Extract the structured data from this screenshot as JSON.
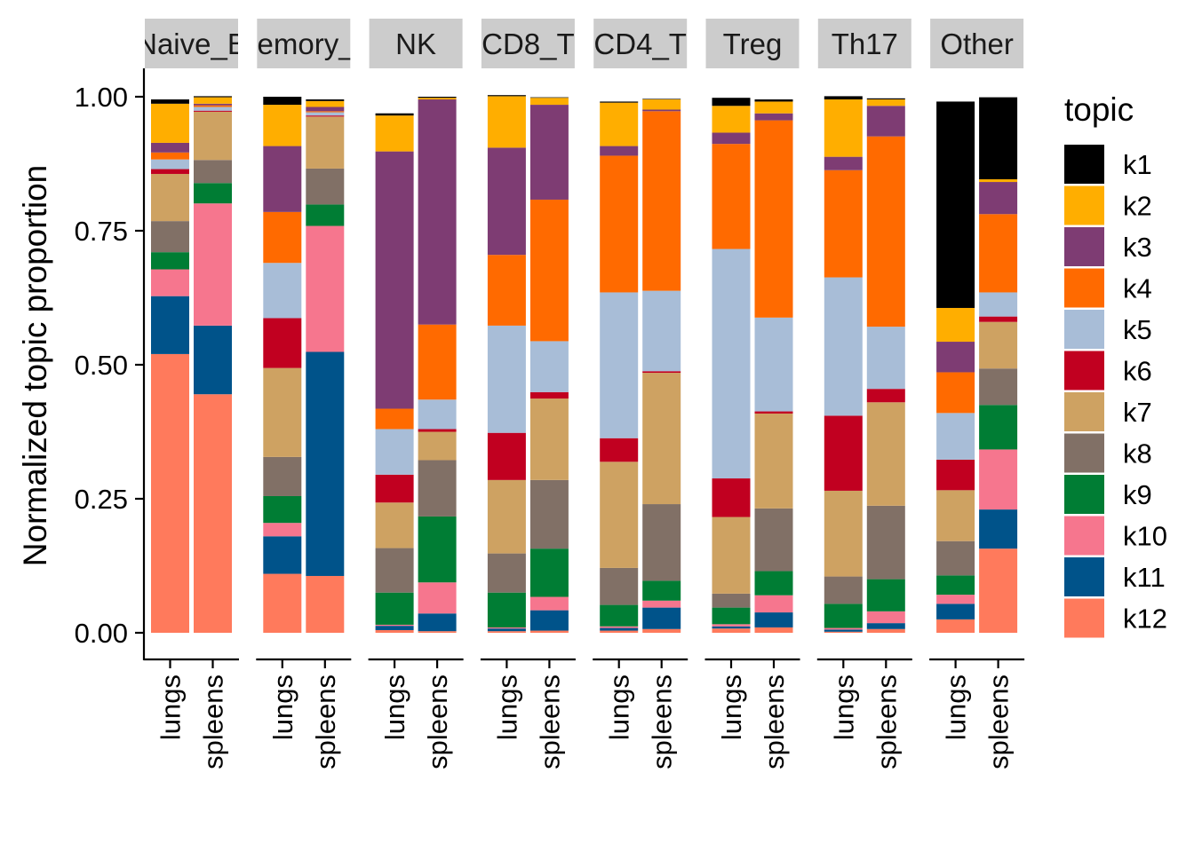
{
  "chart_data": {
    "type": "bar",
    "stacked": true,
    "ylabel": "Normalized topic proportion",
    "ylim": [
      0,
      1
    ],
    "y_ticks": [
      "0.00",
      "0.25",
      "0.50",
      "0.75",
      "1.00"
    ],
    "facets": [
      "Naive_B",
      "Memory_B",
      "NK",
      "CD8_T",
      "CD4_T",
      "Treg",
      "Th17",
      "Other"
    ],
    "categories": [
      "lungs",
      "spleens"
    ],
    "legend": {
      "title": "topic",
      "position": "right",
      "entries": [
        "k1",
        "k2",
        "k3",
        "k4",
        "k5",
        "k6",
        "k7",
        "k8",
        "k9",
        "k10",
        "k11",
        "k12"
      ]
    },
    "colors": {
      "k1": "#000000",
      "k2": "#FFAE00",
      "k3": "#7E3C73",
      "k4": "#FF6A00",
      "k5": "#A8BDD7",
      "k6": "#C10020",
      "k7": "#CEA262",
      "k8": "#817066",
      "k9": "#007D34",
      "k10": "#F6768E",
      "k11": "#00538A",
      "k12": "#FF7A5C"
    },
    "stack_order_bottom_to_top": [
      "k12",
      "k11",
      "k10",
      "k9",
      "k8",
      "k7",
      "k6",
      "k5",
      "k4",
      "k3",
      "k2",
      "k1"
    ],
    "series": [
      {
        "name": "k1",
        "values": [
          [
            0.008,
            0.002
          ],
          [
            0.015,
            0.003
          ],
          [
            0.004,
            0.002
          ],
          [
            0.002,
            0.001
          ],
          [
            0.002,
            0.001
          ],
          [
            0.015,
            0.004
          ],
          [
            0.006,
            0.002
          ],
          [
            0.385,
            0.153
          ]
        ]
      },
      {
        "name": "k2",
        "values": [
          [
            0.073,
            0.012
          ],
          [
            0.077,
            0.011
          ],
          [
            0.067,
            0.003
          ],
          [
            0.096,
            0.013
          ],
          [
            0.081,
            0.019
          ],
          [
            0.05,
            0.022
          ],
          [
            0.107,
            0.012
          ],
          [
            0.063,
            0.005
          ]
        ]
      },
      {
        "name": "k3",
        "values": [
          [
            0.018,
            0.003
          ],
          [
            0.123,
            0.008
          ],
          [
            0.48,
            0.42
          ],
          [
            0.2,
            0.177
          ],
          [
            0.018,
            0.003
          ],
          [
            0.021,
            0.013
          ],
          [
            0.025,
            0.057
          ],
          [
            0.057,
            0.06
          ]
        ]
      },
      {
        "name": "k4",
        "values": [
          [
            0.013,
            0.003
          ],
          [
            0.095,
            0.002
          ],
          [
            0.038,
            0.14
          ],
          [
            0.132,
            0.264
          ],
          [
            0.255,
            0.335
          ],
          [
            0.196,
            0.368
          ],
          [
            0.2,
            0.355
          ],
          [
            0.076,
            0.146
          ]
        ]
      },
      {
        "name": "k5",
        "values": [
          [
            0.018,
            0.007
          ],
          [
            0.103,
            0.006
          ],
          [
            0.085,
            0.055
          ],
          [
            0.2,
            0.095
          ],
          [
            0.272,
            0.15
          ],
          [
            0.428,
            0.175
          ],
          [
            0.258,
            0.116
          ],
          [
            0.087,
            0.045
          ]
        ]
      },
      {
        "name": "k6",
        "values": [
          [
            0.009,
            0.002
          ],
          [
            0.093,
            0.002
          ],
          [
            0.052,
            0.005
          ],
          [
            0.088,
            0.012
          ],
          [
            0.044,
            0.003
          ],
          [
            0.072,
            0.004
          ],
          [
            0.14,
            0.025
          ],
          [
            0.057,
            0.01
          ]
        ]
      },
      {
        "name": "k7",
        "values": [
          [
            0.088,
            0.09
          ],
          [
            0.166,
            0.097
          ],
          [
            0.085,
            0.053
          ],
          [
            0.137,
            0.152
          ],
          [
            0.198,
            0.245
          ],
          [
            0.143,
            0.177
          ],
          [
            0.16,
            0.193
          ],
          [
            0.095,
            0.087
          ]
        ]
      },
      {
        "name": "k8",
        "values": [
          [
            0.058,
            0.043
          ],
          [
            0.073,
            0.067
          ],
          [
            0.083,
            0.105
          ],
          [
            0.073,
            0.128
          ],
          [
            0.069,
            0.143
          ],
          [
            0.026,
            0.117
          ],
          [
            0.051,
            0.137
          ],
          [
            0.064,
            0.068
          ]
        ]
      },
      {
        "name": "k9",
        "values": [
          [
            0.032,
            0.038
          ],
          [
            0.05,
            0.04
          ],
          [
            0.06,
            0.123
          ],
          [
            0.065,
            0.09
          ],
          [
            0.04,
            0.037
          ],
          [
            0.031,
            0.045
          ],
          [
            0.045,
            0.06
          ],
          [
            0.036,
            0.083
          ]
        ]
      },
      {
        "name": "k10",
        "values": [
          [
            0.05,
            0.228
          ],
          [
            0.025,
            0.235
          ],
          [
            0.002,
            0.058
          ],
          [
            0.002,
            0.025
          ],
          [
            0.003,
            0.013
          ],
          [
            0.004,
            0.032
          ],
          [
            0.003,
            0.022
          ],
          [
            0.017,
            0.112
          ]
        ]
      },
      {
        "name": "k11",
        "values": [
          [
            0.108,
            0.128
          ],
          [
            0.07,
            0.418
          ],
          [
            0.008,
            0.033
          ],
          [
            0.005,
            0.038
          ],
          [
            0.005,
            0.04
          ],
          [
            0.004,
            0.028
          ],
          [
            0.004,
            0.011
          ],
          [
            0.029,
            0.073
          ]
        ]
      },
      {
        "name": "k12",
        "values": [
          [
            0.52,
            0.445
          ],
          [
            0.11,
            0.106
          ],
          [
            0.005,
            0.003
          ],
          [
            0.003,
            0.004
          ],
          [
            0.004,
            0.007
          ],
          [
            0.008,
            0.01
          ],
          [
            0.002,
            0.007
          ],
          [
            0.025,
            0.157
          ]
        ]
      }
    ]
  }
}
